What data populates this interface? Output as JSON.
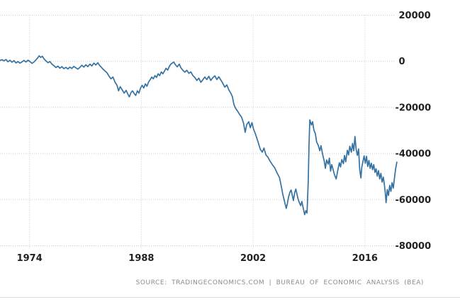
{
  "footer": {
    "source": "SOURCE:  TRADINGECONOMICS.COM  |  BUREAU  OF  ECONOMIC  ANALYSIS  (BEA)"
  },
  "colors": {
    "line": "#3572a1",
    "grid": "#cbcbcb",
    "tick_text": "#222222",
    "source_text": "#8b8b8b",
    "divider": "#dcdcdc"
  },
  "chart_data": {
    "type": "line",
    "title": "",
    "xlabel": "",
    "ylabel": "",
    "legend": "none",
    "grid": "dotted",
    "x_ticks": [
      1974,
      1988,
      2002,
      2016
    ],
    "y_ticks": [
      20000,
      0,
      -20000,
      -40000,
      -60000,
      -80000
    ],
    "x_range": [
      1970.3,
      2020.0
    ],
    "y_range": [
      -81000,
      26500
    ],
    "series": [
      {
        "points": [
          [
            1970.3,
            400
          ],
          [
            1970.55,
            700
          ],
          [
            1970.8,
            200
          ],
          [
            1971.05,
            800
          ],
          [
            1971.3,
            -200
          ],
          [
            1971.55,
            500
          ],
          [
            1971.8,
            -400
          ],
          [
            1972.05,
            300
          ],
          [
            1972.3,
            -700
          ],
          [
            1972.55,
            -100
          ],
          [
            1972.8,
            -800
          ],
          [
            1973.05,
            -200
          ],
          [
            1973.3,
            400
          ],
          [
            1973.55,
            -300
          ],
          [
            1973.8,
            500
          ],
          [
            1974.05,
            -100
          ],
          [
            1974.3,
            -900
          ],
          [
            1974.55,
            -300
          ],
          [
            1974.8,
            600
          ],
          [
            1975.0,
            1400
          ],
          [
            1975.2,
            2400
          ],
          [
            1975.4,
            1700
          ],
          [
            1975.6,
            2200
          ],
          [
            1975.8,
            1100
          ],
          [
            1976.05,
            200
          ],
          [
            1976.3,
            -600
          ],
          [
            1976.55,
            -100
          ],
          [
            1976.8,
            -1200
          ],
          [
            1977.05,
            -1900
          ],
          [
            1977.3,
            -2700
          ],
          [
            1977.55,
            -2100
          ],
          [
            1977.8,
            -3000
          ],
          [
            1978.05,
            -2300
          ],
          [
            1978.3,
            -3200
          ],
          [
            1978.55,
            -2600
          ],
          [
            1978.8,
            -3300
          ],
          [
            1979.05,
            -2500
          ],
          [
            1979.3,
            -3100
          ],
          [
            1979.55,
            -2200
          ],
          [
            1979.8,
            -2800
          ],
          [
            1980.05,
            -3400
          ],
          [
            1980.3,
            -2600
          ],
          [
            1980.55,
            -1700
          ],
          [
            1980.8,
            -2500
          ],
          [
            1981.05,
            -1500
          ],
          [
            1981.3,
            -2300
          ],
          [
            1981.55,
            -1200
          ],
          [
            1981.8,
            -2000
          ],
          [
            1982.05,
            -800
          ],
          [
            1982.3,
            -1600
          ],
          [
            1982.55,
            -600
          ],
          [
            1982.8,
            -1900
          ],
          [
            1983.0,
            -2600
          ],
          [
            1983.2,
            -3400
          ],
          [
            1983.45,
            -4200
          ],
          [
            1983.7,
            -5000
          ],
          [
            1983.95,
            -6400
          ],
          [
            1984.2,
            -7600
          ],
          [
            1984.45,
            -6800
          ],
          [
            1984.7,
            -9000
          ],
          [
            1984.95,
            -10400
          ],
          [
            1985.15,
            -12800
          ],
          [
            1985.35,
            -11000
          ],
          [
            1985.6,
            -12400
          ],
          [
            1985.85,
            -13800
          ],
          [
            1986.1,
            -12600
          ],
          [
            1986.3,
            -14200
          ],
          [
            1986.5,
            -15400
          ],
          [
            1986.7,
            -13600
          ],
          [
            1986.9,
            -12800
          ],
          [
            1987.1,
            -14000
          ],
          [
            1987.3,
            -14800
          ],
          [
            1987.5,
            -12800
          ],
          [
            1987.7,
            -13800
          ],
          [
            1987.9,
            -11600
          ],
          [
            1988.1,
            -10400
          ],
          [
            1988.3,
            -11600
          ],
          [
            1988.5,
            -9800
          ],
          [
            1988.7,
            -10800
          ],
          [
            1988.9,
            -9000
          ],
          [
            1989.1,
            -8000
          ],
          [
            1989.3,
            -6800
          ],
          [
            1989.5,
            -7600
          ],
          [
            1989.7,
            -6200
          ],
          [
            1989.9,
            -7000
          ],
          [
            1990.1,
            -5400
          ],
          [
            1990.3,
            -6200
          ],
          [
            1990.5,
            -4600
          ],
          [
            1990.7,
            -5400
          ],
          [
            1990.9,
            -4200
          ],
          [
            1991.1,
            -3000
          ],
          [
            1991.3,
            -3800
          ],
          [
            1991.5,
            -2200
          ],
          [
            1991.7,
            -1200
          ],
          [
            1991.9,
            -700
          ],
          [
            1992.05,
            -300
          ],
          [
            1992.25,
            -1400
          ],
          [
            1992.5,
            -2400
          ],
          [
            1992.75,
            -1200
          ],
          [
            1992.95,
            -2800
          ],
          [
            1993.2,
            -3900
          ],
          [
            1993.45,
            -4700
          ],
          [
            1993.7,
            -3900
          ],
          [
            1993.95,
            -5200
          ],
          [
            1994.2,
            -4600
          ],
          [
            1994.45,
            -6200
          ],
          [
            1994.7,
            -7000
          ],
          [
            1994.95,
            -8300
          ],
          [
            1995.2,
            -7300
          ],
          [
            1995.45,
            -9100
          ],
          [
            1995.7,
            -8000
          ],
          [
            1995.95,
            -6800
          ],
          [
            1996.2,
            -7900
          ],
          [
            1996.45,
            -6500
          ],
          [
            1996.7,
            -8300
          ],
          [
            1996.95,
            -7100
          ],
          [
            1997.2,
            -6300
          ],
          [
            1997.45,
            -7900
          ],
          [
            1997.7,
            -6700
          ],
          [
            1997.95,
            -8100
          ],
          [
            1998.2,
            -9500
          ],
          [
            1998.45,
            -11200
          ],
          [
            1998.7,
            -10200
          ],
          [
            1998.95,
            -12400
          ],
          [
            1999.2,
            -13800
          ],
          [
            1999.4,
            -15400
          ],
          [
            1999.6,
            -18800
          ],
          [
            1999.8,
            -20400
          ],
          [
            2000.05,
            -21600
          ],
          [
            2000.3,
            -23000
          ],
          [
            2000.55,
            -24200
          ],
          [
            2000.8,
            -26800
          ],
          [
            2001.0,
            -30800
          ],
          [
            2001.2,
            -27400
          ],
          [
            2001.45,
            -26200
          ],
          [
            2001.65,
            -28800
          ],
          [
            2001.85,
            -26600
          ],
          [
            2002.05,
            -29400
          ],
          [
            2002.3,
            -31600
          ],
          [
            2002.6,
            -34800
          ],
          [
            2002.9,
            -38200
          ],
          [
            2003.15,
            -39400
          ],
          [
            2003.35,
            -37600
          ],
          [
            2003.6,
            -40600
          ],
          [
            2003.85,
            -41600
          ],
          [
            2004.1,
            -43200
          ],
          [
            2004.4,
            -44800
          ],
          [
            2004.7,
            -46200
          ],
          [
            2005.0,
            -48400
          ],
          [
            2005.3,
            -50400
          ],
          [
            2005.5,
            -53800
          ],
          [
            2005.7,
            -57400
          ],
          [
            2005.85,
            -59600
          ],
          [
            2006.0,
            -61800
          ],
          [
            2006.15,
            -63800
          ],
          [
            2006.3,
            -61400
          ],
          [
            2006.45,
            -58600
          ],
          [
            2006.6,
            -56800
          ],
          [
            2006.75,
            -55800
          ],
          [
            2006.9,
            -58200
          ],
          [
            2007.05,
            -60400
          ],
          [
            2007.2,
            -57000
          ],
          [
            2007.35,
            -55400
          ],
          [
            2007.5,
            -57800
          ],
          [
            2007.65,
            -60000
          ],
          [
            2007.8,
            -61400
          ],
          [
            2007.95,
            -62600
          ],
          [
            2008.1,
            -60800
          ],
          [
            2008.25,
            -63400
          ],
          [
            2008.45,
            -66500
          ],
          [
            2008.6,
            -64800
          ],
          [
            2008.75,
            -65800
          ],
          [
            2008.9,
            -52000
          ],
          [
            2009.0,
            -36000
          ],
          [
            2009.1,
            -25400
          ],
          [
            2009.3,
            -27600
          ],
          [
            2009.45,
            -26200
          ],
          [
            2009.6,
            -29800
          ],
          [
            2009.8,
            -31400
          ],
          [
            2009.95,
            -35000
          ],
          [
            2010.15,
            -36400
          ],
          [
            2010.35,
            -38800
          ],
          [
            2010.5,
            -36600
          ],
          [
            2010.7,
            -40400
          ],
          [
            2010.9,
            -43200
          ],
          [
            2011.05,
            -46400
          ],
          [
            2011.2,
            -42800
          ],
          [
            2011.4,
            -44600
          ],
          [
            2011.55,
            -42000
          ],
          [
            2011.7,
            -47600
          ],
          [
            2011.85,
            -44800
          ],
          [
            2012.0,
            -46800
          ],
          [
            2012.2,
            -49400
          ],
          [
            2012.4,
            -51000
          ],
          [
            2012.6,
            -47200
          ],
          [
            2012.8,
            -44000
          ],
          [
            2012.95,
            -45800
          ],
          [
            2013.1,
            -42600
          ],
          [
            2013.3,
            -44400
          ],
          [
            2013.45,
            -40800
          ],
          [
            2013.6,
            -43600
          ],
          [
            2013.8,
            -38600
          ],
          [
            2013.95,
            -40600
          ],
          [
            2014.1,
            -36800
          ],
          [
            2014.3,
            -39400
          ],
          [
            2014.45,
            -35600
          ],
          [
            2014.6,
            -38800
          ],
          [
            2014.75,
            -32600
          ],
          [
            2014.9,
            -38200
          ],
          [
            2015.05,
            -40800
          ],
          [
            2015.2,
            -38000
          ],
          [
            2015.35,
            -47000
          ],
          [
            2015.5,
            -50600
          ],
          [
            2015.6,
            -46000
          ],
          [
            2015.75,
            -43400
          ],
          [
            2015.9,
            -41000
          ],
          [
            2016.05,
            -44200
          ],
          [
            2016.2,
            -41200
          ],
          [
            2016.35,
            -45600
          ],
          [
            2016.5,
            -43000
          ],
          [
            2016.65,
            -46400
          ],
          [
            2016.8,
            -44200
          ],
          [
            2016.95,
            -47000
          ],
          [
            2017.1,
            -44800
          ],
          [
            2017.25,
            -48200
          ],
          [
            2017.4,
            -46600
          ],
          [
            2017.55,
            -49800
          ],
          [
            2017.7,
            -47400
          ],
          [
            2017.85,
            -51000
          ],
          [
            2018.0,
            -48600
          ],
          [
            2018.15,
            -52400
          ],
          [
            2018.3,
            -50200
          ],
          [
            2018.45,
            -54000
          ],
          [
            2018.55,
            -57200
          ],
          [
            2018.65,
            -61300
          ],
          [
            2018.8,
            -55600
          ],
          [
            2018.95,
            -58200
          ],
          [
            2019.1,
            -53800
          ],
          [
            2019.25,
            -56400
          ],
          [
            2019.4,
            -52600
          ],
          [
            2019.55,
            -55000
          ],
          [
            2019.7,
            -50400
          ],
          [
            2019.85,
            -46600
          ],
          [
            2020.0,
            -43700
          ]
        ]
      }
    ]
  }
}
